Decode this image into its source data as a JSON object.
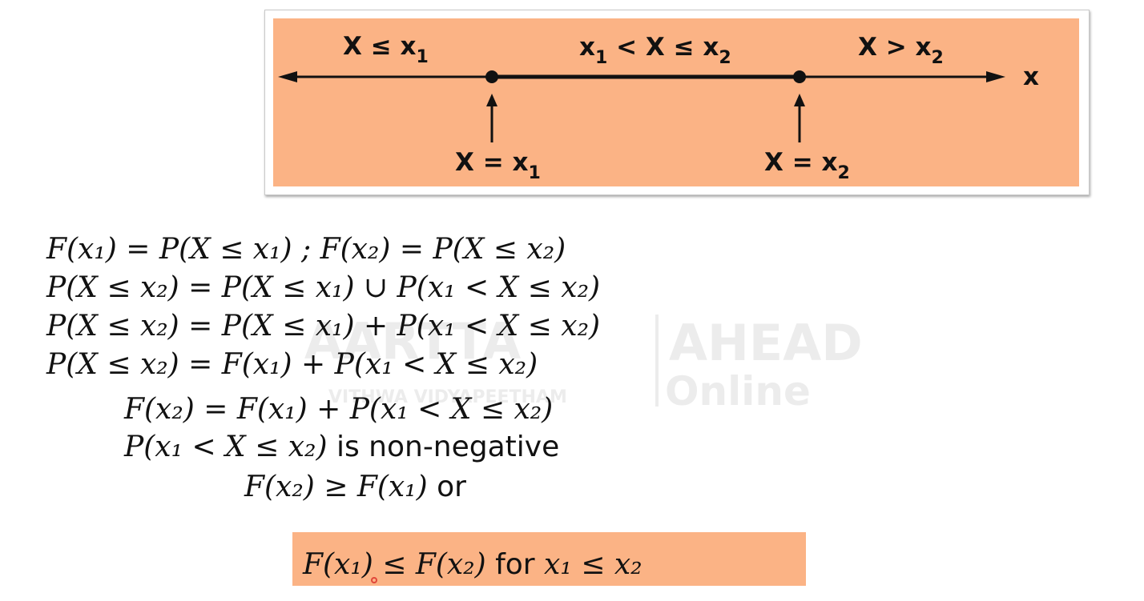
{
  "figure": {
    "region_labels": {
      "left": {
        "main": "X ≤ x",
        "sub": "1"
      },
      "middle": {
        "a": "x",
        "a_sub": "1",
        "mid": " < X ≤ x",
        "b_sub": "2"
      },
      "right": {
        "main": "X > x",
        "sub": "2"
      }
    },
    "axis_label": "x",
    "point_labels": [
      {
        "main": "X = x",
        "sub": "1"
      },
      {
        "main": "X = x",
        "sub": "2"
      }
    ],
    "colors": {
      "panel": "#fbb385",
      "ink": "#111111"
    }
  },
  "derivation": {
    "line1": "F(x₁) = P(X ≤ x₁) ; F(x₂) = P(X ≤ x₂)",
    "line2": "P(X ≤ x₂) = P(X ≤ x₁) ∪ P(x₁ < X ≤ x₂)",
    "line3": "P(X ≤ x₂) = P(X ≤ x₁) + P(x₁ < X ≤ x₂)",
    "line4": "P(X ≤ x₂) = F(x₁) + P(x₁ < X ≤ x₂)",
    "line5": "F(x₂) = F(x₁) + P(x₁ < X ≤ x₂)",
    "line6_math": "P(x₁ < X ≤ x₂)",
    "line6_text": " is non-negative",
    "line7_math": "F(x₂) ≥ F(x₁)",
    "line7_text": " or"
  },
  "result": {
    "math_a": "F(x₁) ≤ F(x₂)",
    "text": " for ",
    "math_b": "x₁ ≤ x₂"
  },
  "watermark": {
    "brand_left": "AARTTA",
    "brand_right": "AHEAD",
    "online": "Online",
    "tagline": "VITHWA VIDYAPEETHAM"
  }
}
